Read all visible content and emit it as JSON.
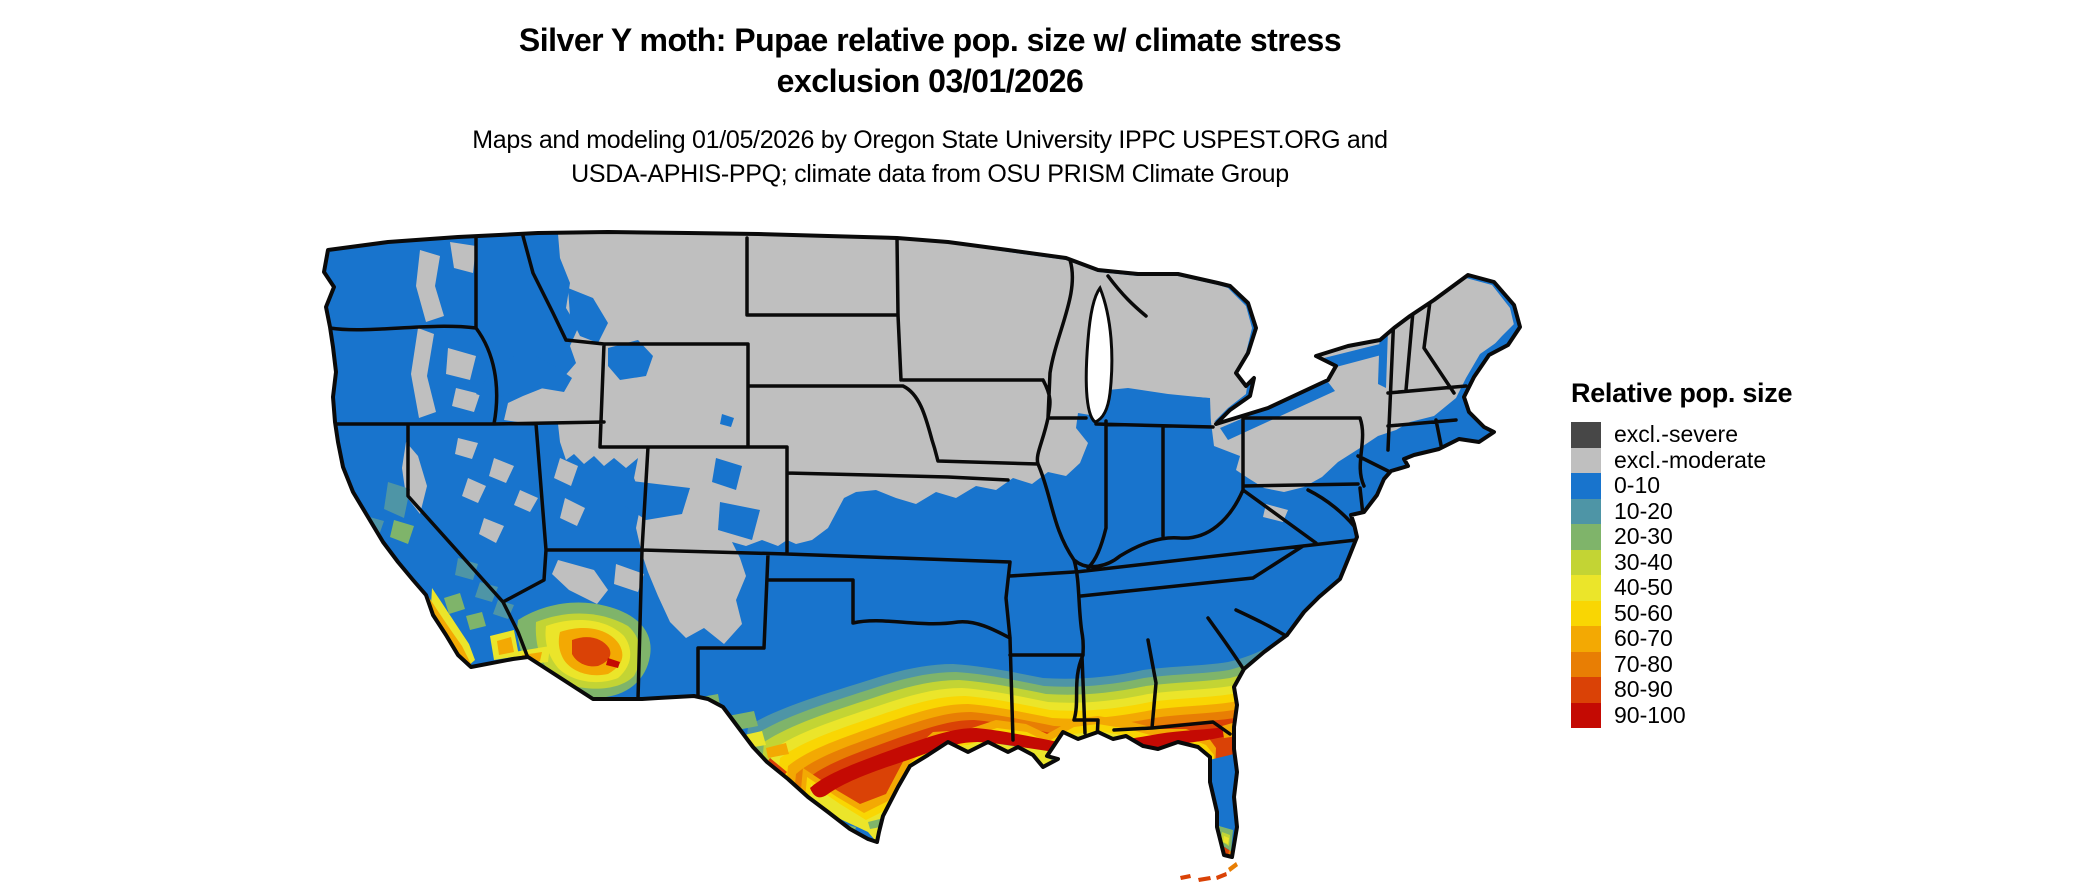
{
  "header": {
    "title_line1": "Silver Y moth: Pupae relative pop. size w/ climate stress",
    "title_line2": "exclusion 03/01/2026",
    "subtitle_line1": "Maps and modeling 01/05/2026 by Oregon State University IPPC USPEST.ORG and",
    "subtitle_line2": "USDA-APHIS-PPQ; climate data from OSU PRISM Climate Group"
  },
  "legend": {
    "title": "Relative pop. size",
    "items": [
      {
        "label": "excl.-severe",
        "color": "#474747"
      },
      {
        "label": "excl.-moderate",
        "color": "#bfbfbf"
      },
      {
        "label": "0-10",
        "color": "#1874cd"
      },
      {
        "label": "10-20",
        "color": "#4e95a6"
      },
      {
        "label": "20-30",
        "color": "#7fb46a"
      },
      {
        "label": "30-40",
        "color": "#c3d434"
      },
      {
        "label": "40-50",
        "color": "#ebe52a"
      },
      {
        "label": "50-60",
        "color": "#f9d603"
      },
      {
        "label": "60-70",
        "color": "#f3a903"
      },
      {
        "label": "70-80",
        "color": "#e87e04"
      },
      {
        "label": "80-90",
        "color": "#da4206"
      },
      {
        "label": "90-100",
        "color": "#c40a03"
      }
    ]
  },
  "palette": {
    "excl_severe": "#474747",
    "excl_moderate": "#bfbfbf",
    "v0_10": "#1874cd",
    "v10_20": "#4e95a6",
    "v20_30": "#7fb46a",
    "v30_40": "#c3d434",
    "v40_50": "#ebe52a",
    "v50_60": "#f9d603",
    "v60_70": "#f3a903",
    "v70_80": "#e87e04",
    "v80_90": "#da4206",
    "v90_100": "#c40a03",
    "water": "#ffffff",
    "border": "#0a0a0a"
  }
}
